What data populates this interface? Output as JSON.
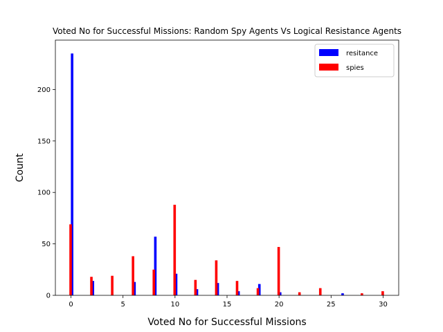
{
  "chart_data": {
    "type": "bar",
    "title": "Voted No for Successful Missions: Random Spy Agents Vs Logical Resistance Agents",
    "xlabel": "Voted No for Successful Missions",
    "ylabel": "Count",
    "xlim": [
      -1.5,
      31.5
    ],
    "ylim": [
      0,
      248
    ],
    "xticks": [
      0,
      5,
      10,
      15,
      20,
      25,
      30
    ],
    "yticks": [
      0,
      50,
      100,
      150,
      200
    ],
    "grid": false,
    "legend_position": "top-right",
    "series": [
      {
        "name": "resitance",
        "color": "#0000ff",
        "points": [
          {
            "x": 0,
            "y": 235
          },
          {
            "x": 2,
            "y": 14
          },
          {
            "x": 6,
            "y": 13
          },
          {
            "x": 8,
            "y": 57
          },
          {
            "x": 10,
            "y": 21
          },
          {
            "x": 12,
            "y": 6
          },
          {
            "x": 14,
            "y": 12
          },
          {
            "x": 16,
            "y": 4
          },
          {
            "x": 18,
            "y": 11
          },
          {
            "x": 20,
            "y": 3
          },
          {
            "x": 26,
            "y": 2
          }
        ]
      },
      {
        "name": "spies",
        "color": "#ff0000",
        "points": [
          {
            "x": 0,
            "y": 69
          },
          {
            "x": 2,
            "y": 18
          },
          {
            "x": 4,
            "y": 19
          },
          {
            "x": 6,
            "y": 38
          },
          {
            "x": 8,
            "y": 25
          },
          {
            "x": 10,
            "y": 88
          },
          {
            "x": 12,
            "y": 15
          },
          {
            "x": 14,
            "y": 34
          },
          {
            "x": 16,
            "y": 14
          },
          {
            "x": 18,
            "y": 7
          },
          {
            "x": 20,
            "y": 47
          },
          {
            "x": 22,
            "y": 3
          },
          {
            "x": 24,
            "y": 7
          },
          {
            "x": 28,
            "y": 2
          },
          {
            "x": 30,
            "y": 4
          }
        ]
      }
    ]
  }
}
